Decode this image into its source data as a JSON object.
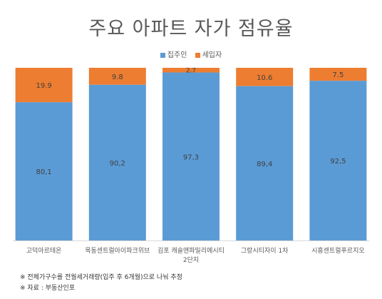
{
  "chart_data": {
    "type": "bar",
    "stacked": true,
    "title": "주요 아파트 자가 점유율",
    "categories": [
      "고덕아르테온",
      "목동센트럴아이파크위브",
      "김포 캐슬앤파밀리에시티 2단지",
      "그랑시티자이 1차",
      "시흥센트럴푸르지오"
    ],
    "category_lines": [
      [
        "고덕아르테온"
      ],
      [
        "목동센트럴아이파크위브"
      ],
      [
        "김포 캐슬앤파밀리에시티",
        "2단지"
      ],
      [
        "그랑시티자이 1차"
      ],
      [
        "시흥센트럴푸르지오"
      ]
    ],
    "series": [
      {
        "name": "집주인",
        "values": [
          80.1,
          90.2,
          97.3,
          89.4,
          92.5
        ],
        "labels": [
          "80,1",
          "90,2",
          "97,3",
          "89,4",
          "92,5"
        ],
        "color": "#5B9BD5"
      },
      {
        "name": "세입자",
        "values": [
          19.9,
          9.8,
          2.7,
          10.6,
          7.5
        ],
        "labels": [
          "19.9",
          "9.8",
          "2.7",
          "10.6",
          "7.5"
        ],
        "color": "#ED7D31"
      }
    ],
    "ylim": [
      0,
      100
    ],
    "legend_position": "top",
    "grid": false
  },
  "notes": [
    "※ 전체가구수를 전월세거래량(입주 후 6개월)으로 나눠 추정",
    "※ 자료 : 부동산인포"
  ]
}
